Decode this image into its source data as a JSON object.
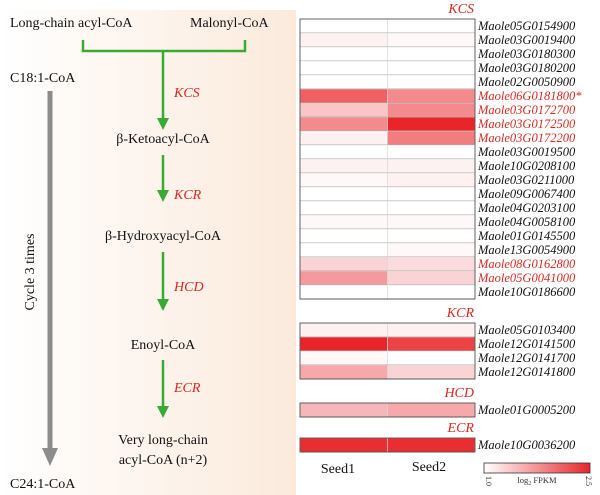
{
  "pathway": {
    "substrate_1": "Long-chain acyl-CoA",
    "substrate_2": "Malonyl-CoA",
    "start": "C18:1-CoA",
    "end": "C24:1-CoA",
    "cycle": "Cycle 3 times",
    "steps": [
      {
        "enzyme": "KCS",
        "product": "β-Ketoacyl-CoA"
      },
      {
        "enzyme": "KCR",
        "product": "β-Hydroxyacyl-CoA"
      },
      {
        "enzyme": "HCD",
        "product": "Enoyl-CoA"
      },
      {
        "enzyme": "ECR",
        "product_line1": "Very long-chain",
        "product_line2": "acyl-CoA (n+2)"
      }
    ],
    "arrow_color": "#3aaa35",
    "cycle_arrow_color": "#8c8c8c"
  },
  "chart_data": {
    "type": "heatmap",
    "columns": [
      "Seed1",
      "Seed2"
    ],
    "colorbar": {
      "label": "log2 FPKM",
      "min": 1.0,
      "max": 2.5,
      "min_label": "1.0",
      "max_label": "2.5",
      "low_color": "#ffffff",
      "high_color": "#e8262a"
    },
    "groups": [
      {
        "name": "KCS",
        "rows": [
          {
            "gene": "Maole05G0154900",
            "values": [
              1.0,
              1.0
            ],
            "highlight": false
          },
          {
            "gene": "Maole03G0019400",
            "values": [
              1.1,
              1.05
            ],
            "highlight": false
          },
          {
            "gene": "Maole03G0180300",
            "values": [
              1.0,
              1.0
            ],
            "highlight": false
          },
          {
            "gene": "Maole03G0180200",
            "values": [
              1.0,
              1.0
            ],
            "highlight": false
          },
          {
            "gene": "Maole02G0050900",
            "values": [
              1.0,
              1.0
            ],
            "highlight": false
          },
          {
            "gene": "Maole06G0181800*",
            "values": [
              2.1,
              1.8
            ],
            "highlight": true
          },
          {
            "gene": "Maole03G0172700",
            "values": [
              1.4,
              1.8
            ],
            "highlight": true
          },
          {
            "gene": "Maole03G0172500",
            "values": [
              1.8,
              2.5
            ],
            "highlight": true
          },
          {
            "gene": "Maole03G0172200",
            "values": [
              1.1,
              1.9
            ],
            "highlight": true
          },
          {
            "gene": "Maole03G0019500",
            "values": [
              1.0,
              1.0
            ],
            "highlight": false
          },
          {
            "gene": "Maole10G0208100",
            "values": [
              1.1,
              1.1
            ],
            "highlight": false
          },
          {
            "gene": "Maole03G0211000",
            "values": [
              1.05,
              1.1
            ],
            "highlight": false
          },
          {
            "gene": "Maole09G0067400",
            "values": [
              1.0,
              1.0
            ],
            "highlight": false
          },
          {
            "gene": "Maole04G0203100",
            "values": [
              1.0,
              1.0
            ],
            "highlight": false
          },
          {
            "gene": "Maole04G0058100",
            "values": [
              1.05,
              1.05
            ],
            "highlight": false
          },
          {
            "gene": "Maole01G0145500",
            "values": [
              1.0,
              1.0
            ],
            "highlight": false
          },
          {
            "gene": "Maole13G0054900",
            "values": [
              1.0,
              1.05
            ],
            "highlight": false
          },
          {
            "gene": "Maole08G0162800",
            "values": [
              1.3,
              1.25
            ],
            "highlight": true
          },
          {
            "gene": "Maole05G0041000",
            "values": [
              1.7,
              1.3
            ],
            "highlight": true
          },
          {
            "gene": "Maole10G0186600",
            "values": [
              1.0,
              1.0
            ],
            "highlight": false
          }
        ]
      },
      {
        "name": "KCR",
        "rows": [
          {
            "gene": "Maole05G0103400",
            "values": [
              1.1,
              1.1
            ],
            "highlight": false
          },
          {
            "gene": "Maole12G0141500",
            "values": [
              2.5,
              2.3
            ],
            "highlight": false
          },
          {
            "gene": "Maole12G0141700",
            "values": [
              1.05,
              1.0
            ],
            "highlight": false
          },
          {
            "gene": "Maole12G0141800",
            "values": [
              1.6,
              1.3
            ],
            "highlight": false
          }
        ]
      },
      {
        "name": "HCD",
        "rows": [
          {
            "gene": "Maole01G0005200",
            "values": [
              1.5,
              1.6
            ],
            "highlight": false
          }
        ]
      },
      {
        "name": "ECR",
        "rows": [
          {
            "gene": "Maole10G0036200",
            "values": [
              2.45,
              2.45
            ],
            "highlight": false
          }
        ]
      }
    ]
  }
}
